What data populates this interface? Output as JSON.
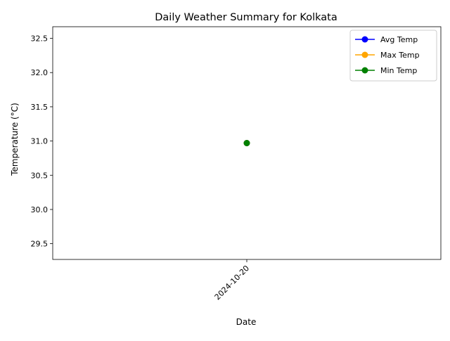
{
  "chart_data": {
    "type": "line",
    "title": "Daily Weather Summary for Kolkata",
    "xlabel": "Date",
    "ylabel": "Temperature (°C)",
    "categories": [
      "2024-10-20"
    ],
    "ylim": [
      29.27,
      32.67
    ],
    "yticks": [
      "29.5",
      "30.0",
      "30.5",
      "31.0",
      "31.5",
      "32.0",
      "32.5"
    ],
    "ytick_values": [
      29.5,
      30.0,
      30.5,
      31.0,
      31.5,
      32.0,
      32.5
    ],
    "series": [
      {
        "name": "Avg Temp",
        "color": "#0000ff",
        "values": [
          30.97
        ]
      },
      {
        "name": "Max Temp",
        "color": "#ffa500",
        "values": [
          30.97
        ]
      },
      {
        "name": "Min Temp",
        "color": "#008000",
        "values": [
          30.97
        ]
      }
    ],
    "legend_position": "top-right",
    "grid": false,
    "marker": "circle"
  }
}
